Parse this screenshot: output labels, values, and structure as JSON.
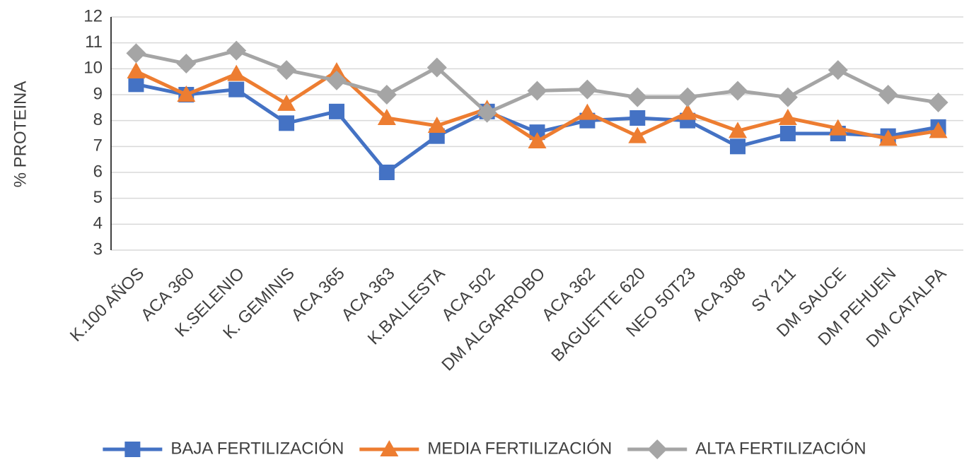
{
  "chart_data": {
    "type": "line",
    "y_label": "% PROTEINA",
    "categories": [
      "K.100 AÑOS",
      "ACA 360",
      "K.SELENIO",
      "K. GEMINIS",
      "ACA 365",
      "ACA 363",
      "K.BALLESTA",
      "ACA 502",
      "DM ALGARROBO",
      "ACA 362",
      "BAGUETTE 620",
      "NEO 50T23",
      "ACA 308",
      "SY 211",
      "DM SAUCE",
      "DM PEHUEN",
      "DM CATALPA"
    ],
    "series": [
      {
        "name": "BAJA FERTILIZACIÓN",
        "color": "#4472c4",
        "marker": "square",
        "values": [
          9.4,
          9.0,
          9.2,
          7.9,
          8.35,
          6.0,
          7.4,
          8.35,
          7.55,
          8.0,
          8.1,
          8.0,
          7.0,
          7.5,
          7.5,
          7.4,
          7.75
        ]
      },
      {
        "name": "MEDIA FERTILIZACIÓN",
        "color": "#ed7d31",
        "marker": "triangle",
        "values": [
          9.9,
          9.0,
          9.8,
          8.65,
          9.9,
          8.1,
          7.8,
          8.45,
          7.2,
          8.3,
          7.4,
          8.3,
          7.6,
          8.1,
          7.7,
          7.3,
          7.6
        ]
      },
      {
        "name": "ALTA FERTILIZACIÓN",
        "color": "#a5a5a5",
        "marker": "diamond",
        "values": [
          10.6,
          10.2,
          10.7,
          9.95,
          9.55,
          9.0,
          10.05,
          8.3,
          9.15,
          9.2,
          8.9,
          8.9,
          9.15,
          8.9,
          9.95,
          9.0,
          8.7
        ]
      }
    ],
    "ylim": [
      3,
      12
    ],
    "yticks": [
      3,
      4,
      5,
      6,
      7,
      8,
      9,
      10,
      11,
      12
    ],
    "grid": true,
    "legend": "bottom"
  }
}
